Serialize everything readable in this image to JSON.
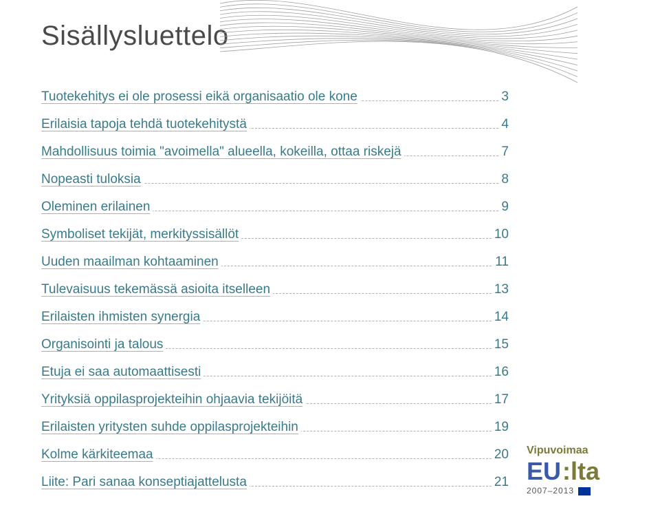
{
  "title": "Sisällysluettelo",
  "toc": [
    {
      "label": "Tuotekehitys ei ole prosessi eikä organisaatio ole kone",
      "page": "3"
    },
    {
      "label": "Erilaisia tapoja tehdä tuotekehitystä",
      "page": "4"
    },
    {
      "label": "Mahdollisuus toimia \"avoimella\" alueella, kokeilla, ottaa riskejä",
      "page": "7"
    },
    {
      "label": "Nopeasti tuloksia",
      "page": "8"
    },
    {
      "label": "Oleminen erilainen",
      "page": "9"
    },
    {
      "label": "Symboliset tekijät, merkityssisällöt",
      "page": "10"
    },
    {
      "label": "Uuden maailman kohtaaminen",
      "page": "11"
    },
    {
      "label": "Tulevaisuus tekemässä asioita itselleen",
      "page": "13"
    },
    {
      "label": "Erilaisten ihmisten synergia",
      "page": "14"
    },
    {
      "label": "Organisointi ja talous",
      "page": "15"
    },
    {
      "label": "Etuja ei saa automaattisesti",
      "page": "16"
    },
    {
      "label": "Yrityksiä oppilasprojekteihin ohjaavia tekijöitä",
      "page": "17"
    },
    {
      "label": "Erilaisten yritysten suhde oppilasprojekteihin",
      "page": "19"
    },
    {
      "label": "Kolme kärkiteemaa",
      "page": "20"
    },
    {
      "label": "Liite: Pari sanaa konseptiajattelusta",
      "page": "21"
    }
  ],
  "logo": {
    "line1": "Vipuvoimaa",
    "eu": "EU",
    "suffix": ":lta",
    "years": "2007–2013"
  },
  "graphic": {
    "stroke_color": "#9f9f9f",
    "stroke_width": 0.8,
    "line_count": 14
  }
}
